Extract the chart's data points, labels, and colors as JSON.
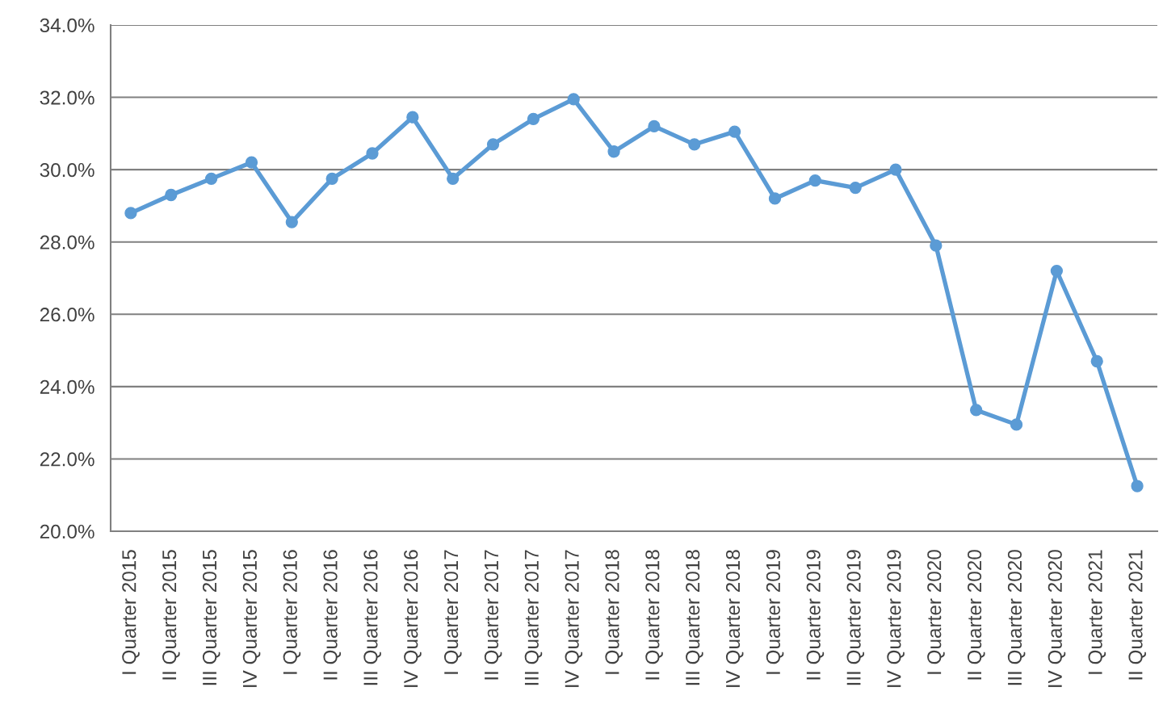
{
  "chart_data": {
    "type": "line",
    "categories": [
      "I Quarter 2015",
      "II Quarter 2015",
      "III Quarter 2015",
      "IV Quarter 2015",
      "I Quarter 2016",
      "II Quarter 2016",
      "III Quarter 2016",
      "IV Quarter 2016",
      "I Quarter 2017",
      "II Quarter 2017",
      "III Quarter 2017",
      "IV Quarter 2017",
      "I Quarter 2018",
      "II Quarter 2018",
      "III Quarter 2018",
      "IV Quarter 2018",
      "I Quarter 2019",
      "II Quarter 2019",
      "III Quarter 2019",
      "IV Quarter 2019",
      "I Quarter 2020",
      "II Quarter 2020",
      "III Quarter 2020",
      "IV Quarter 2020",
      "I Quarter 2021",
      "II Quarter 2021"
    ],
    "series": [
      {
        "color": "#5b9bd5",
        "values": [
          28.8,
          29.3,
          29.75,
          30.2,
          28.55,
          29.75,
          30.45,
          31.45,
          29.75,
          30.7,
          31.4,
          31.95,
          30.5,
          31.2,
          30.7,
          31.05,
          29.2,
          29.7,
          29.5,
          30.0,
          27.9,
          23.35,
          22.95,
          27.2,
          24.7,
          21.25
        ]
      }
    ],
    "ylim": [
      20,
      34
    ],
    "yticks": [
      {
        "value": 20,
        "label": "20.0%"
      },
      {
        "value": 22,
        "label": "22.0%"
      },
      {
        "value": 24,
        "label": "24.0%"
      },
      {
        "value": 26,
        "label": "26.0%"
      },
      {
        "value": 28,
        "label": "28.0%"
      },
      {
        "value": 30,
        "label": "30.0%"
      },
      {
        "value": 32,
        "label": "32.0%"
      },
      {
        "value": 34,
        "label": "34.0%"
      }
    ],
    "grid": "y",
    "marker": "circle",
    "line_style": "solid"
  }
}
